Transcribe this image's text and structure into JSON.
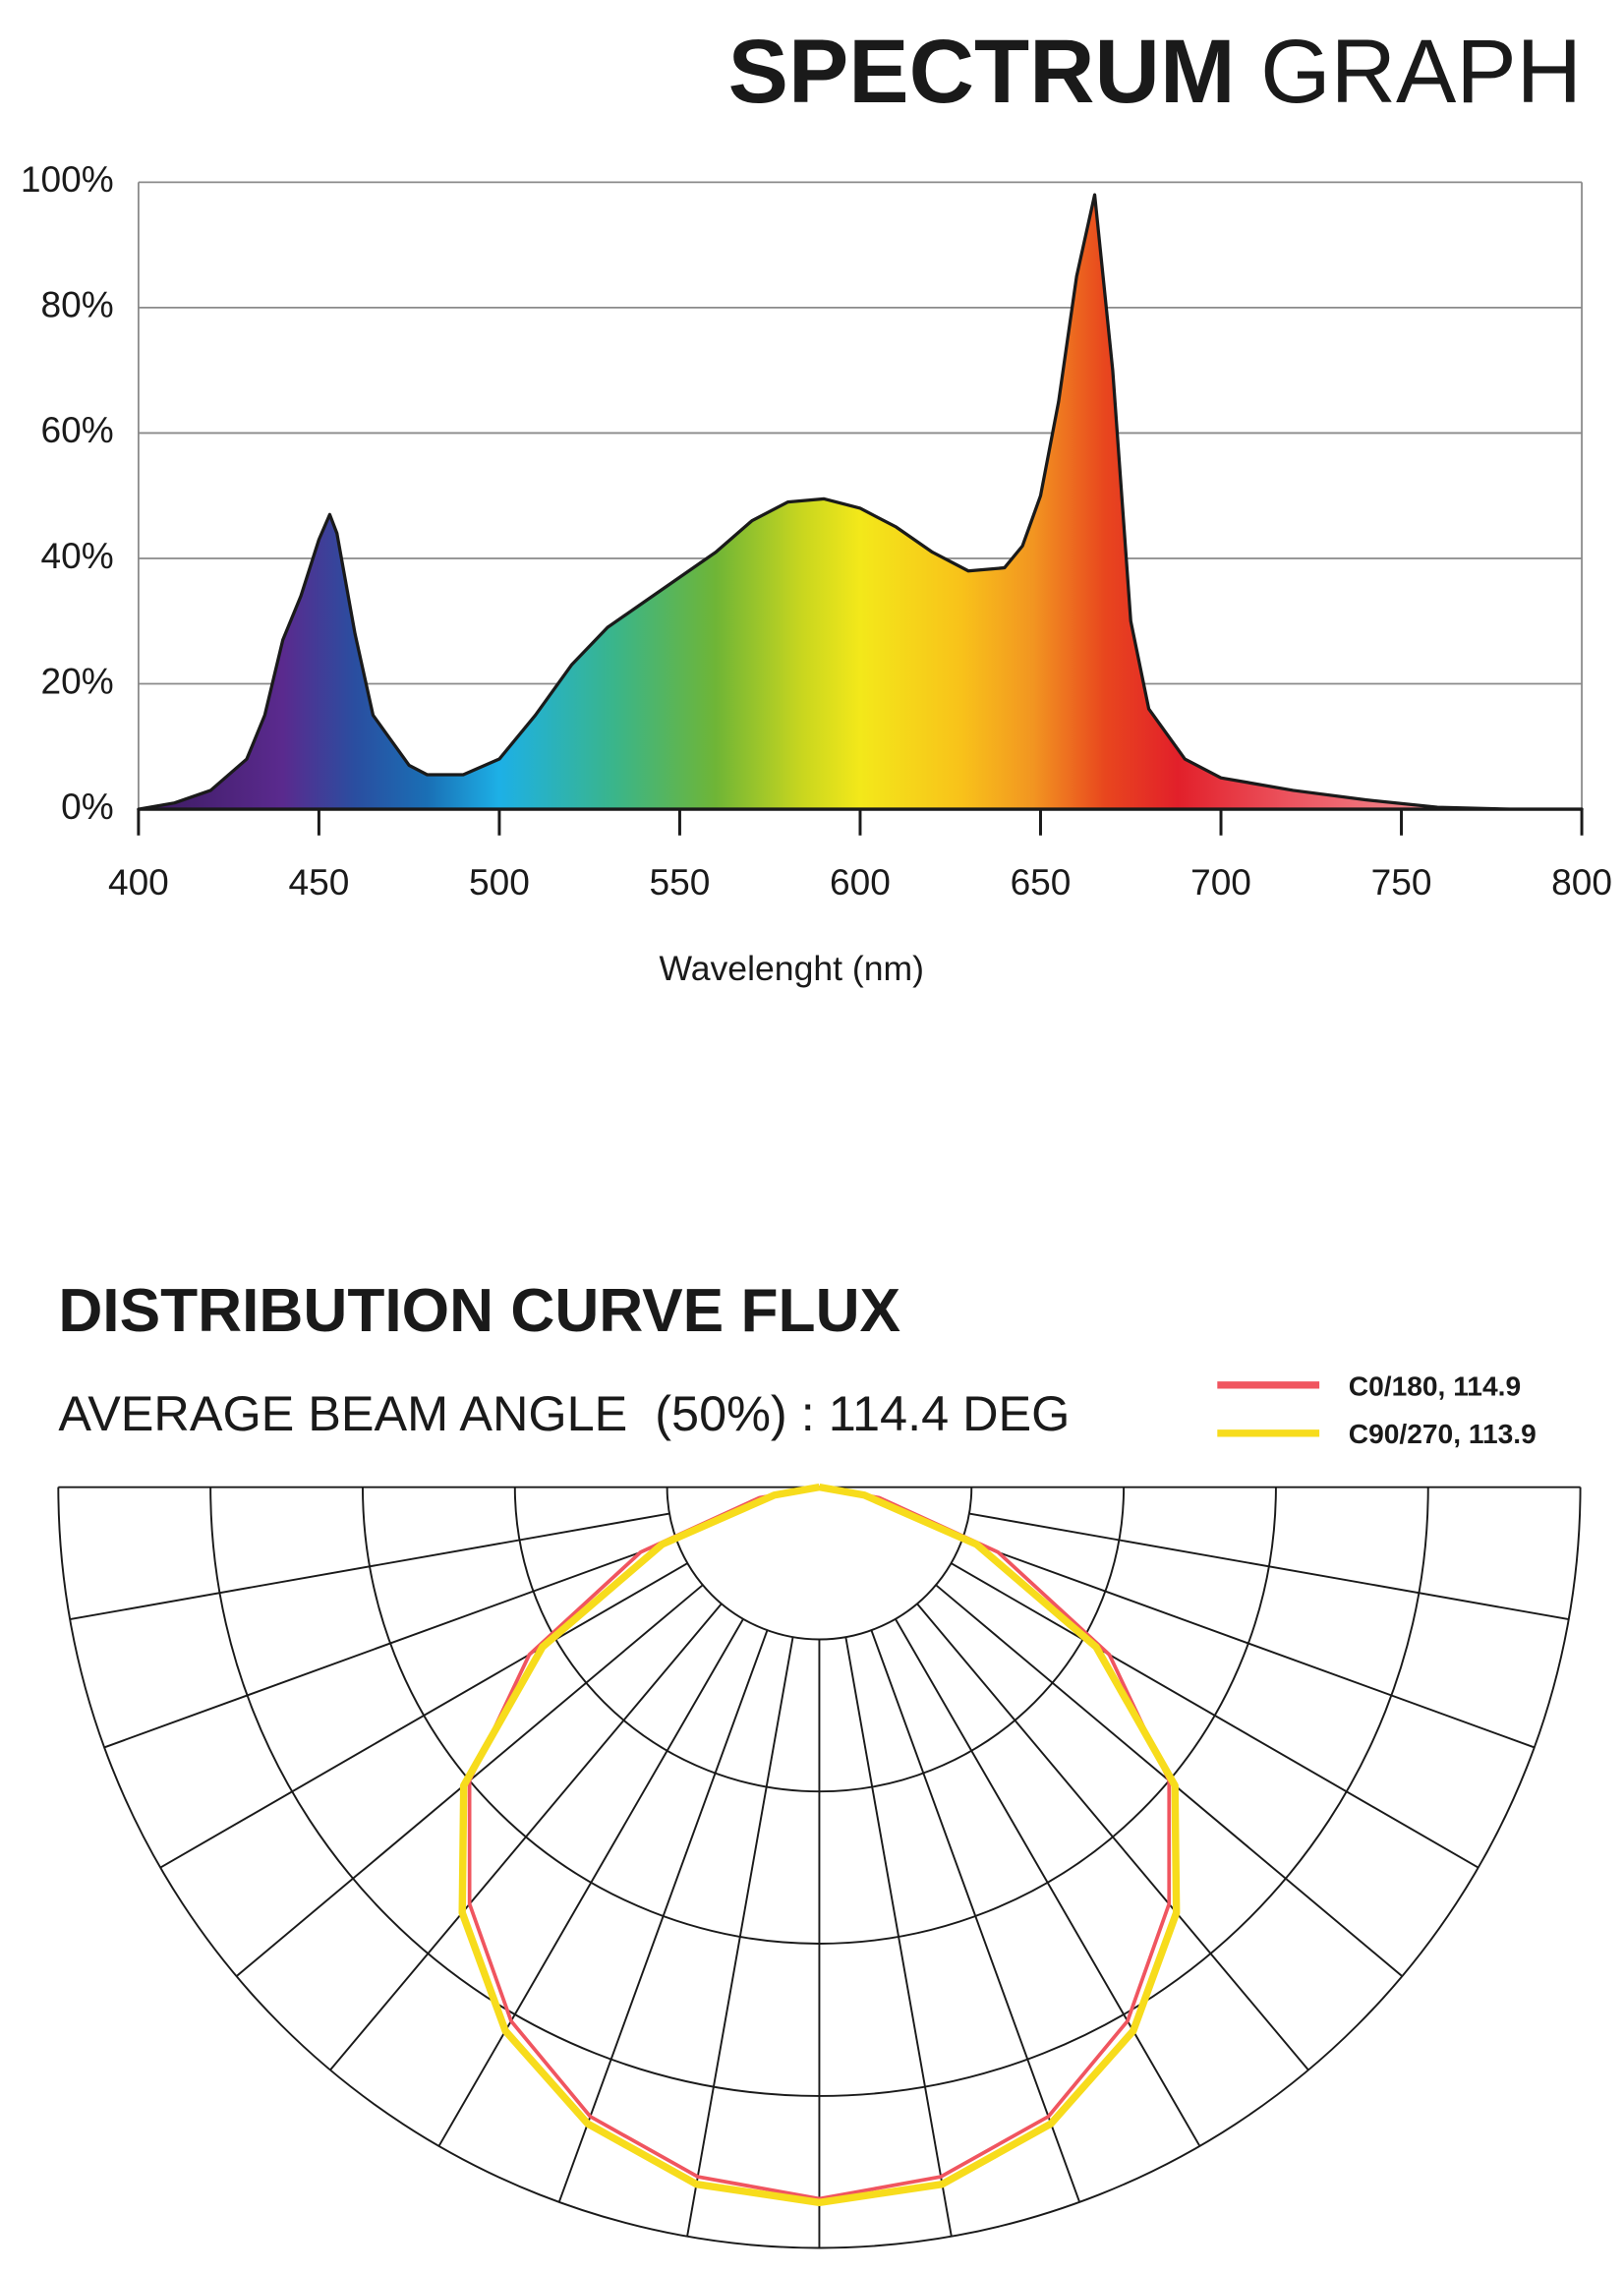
{
  "chart_data": [
    {
      "type": "area",
      "title": [
        "SPECTRUM",
        "GRAPH"
      ],
      "x_label": "Wavelenght (nm)",
      "x": [
        400,
        410,
        420,
        430,
        435,
        440,
        445,
        450,
        453,
        455,
        460,
        465,
        470,
        475,
        480,
        490,
        500,
        510,
        520,
        530,
        540,
        550,
        560,
        570,
        580,
        590,
        600,
        610,
        620,
        630,
        640,
        645,
        650,
        655,
        660,
        665,
        670,
        675,
        680,
        690,
        700,
        720,
        740,
        760,
        780,
        800
      ],
      "values": [
        0,
        1,
        3,
        8,
        15,
        27,
        34,
        43,
        47,
        44,
        28,
        15,
        11,
        7,
        5.5,
        5.5,
        8,
        15,
        23,
        29,
        33,
        37,
        41,
        46,
        49,
        49.5,
        48,
        45,
        41,
        38,
        38.5,
        42,
        50,
        65,
        85,
        98,
        70,
        30,
        16,
        8,
        5,
        3,
        1.5,
        0.3,
        0,
        0
      ],
      "color": "#1a1a1a",
      "xlim": [
        400,
        800
      ],
      "xticks": [
        400,
        450,
        500,
        550,
        600,
        650,
        700,
        750,
        800
      ],
      "ylim": [
        0,
        100
      ],
      "yticks": [
        {
          "value": 0,
          "label": "0%"
        },
        {
          "value": 20,
          "label": "20%"
        },
        {
          "value": 40,
          "label": "40%"
        },
        {
          "value": 60,
          "label": "60%"
        },
        {
          "value": 80,
          "label": "80%"
        },
        {
          "value": 100,
          "label": "100%"
        }
      ],
      "grid": true
    },
    {
      "type": "polar",
      "title": "DISTRIBUTION CURVE FLUX",
      "subtitle": "AVERAGE BEAM ANGLE  (50%) : 114.4 DEG",
      "theta": [
        -90,
        -80,
        -70,
        -60,
        -50,
        -40,
        -30,
        -20,
        -10,
        0,
        10,
        20,
        30,
        40,
        50,
        60,
        70,
        80,
        90
      ],
      "series": [
        {
          "name": "C0/180, 114.9",
          "color": "#f0555f",
          "values": [
            0,
            8,
            25,
            44,
            60,
            71.5,
            81,
            88,
            92,
            93.5,
            92,
            88,
            81,
            71.5,
            60,
            44,
            25,
            8,
            0
          ]
        },
        {
          "name": "C90/270, 113.9",
          "color": "#f7dc1c",
          "values": [
            0,
            6,
            22,
            42,
            61,
            73,
            82.5,
            89,
            93,
            94,
            93,
            89,
            82.5,
            73,
            61,
            42,
            22,
            6,
            0
          ]
        }
      ],
      "rlim": [
        0,
        100
      ],
      "rticks": [
        20,
        40,
        60,
        80,
        100
      ],
      "thetaticks": [
        -90,
        -80,
        -70,
        -60,
        -50,
        -40,
        -30,
        -20,
        -10,
        0,
        10,
        20,
        30,
        40,
        50,
        60,
        70,
        80,
        90
      ],
      "grid": true
    }
  ]
}
